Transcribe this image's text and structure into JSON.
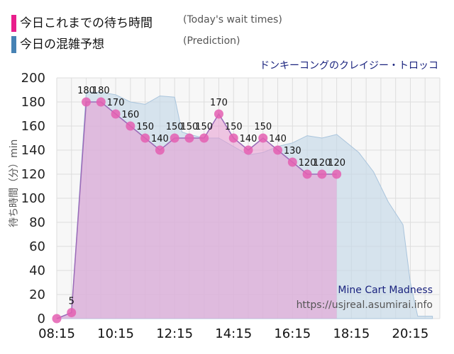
{
  "legend": {
    "actual_label": "今日これまでの待ち時間",
    "actual_sub": "(Today's wait times)",
    "actual_color": "#e91e8c",
    "pred_label": "今日の混雑予想",
    "pred_sub": "(Prediction)",
    "pred_color": "#4682b4"
  },
  "ride_name": "ドンキーコングのクレイジー・トロッコ",
  "watermark": {
    "title": "Mine Cart Madness",
    "url": "https://usjreal.asumirai.info"
  },
  "chart_data": {
    "type": "area",
    "ylabel": "待ち時間（分）min",
    "ylim": [
      0,
      200
    ],
    "yticks": [
      0,
      20,
      40,
      60,
      80,
      100,
      120,
      140,
      160,
      180,
      200
    ],
    "xlim": [
      "08:15",
      "21:15"
    ],
    "xticks": [
      "08:15",
      "10:15",
      "12:15",
      "14:15",
      "16:15",
      "18:15",
      "20:15"
    ],
    "grid": true,
    "series": [
      {
        "name": "今日これまでの待ち時間",
        "x": [
          "08:15",
          "08:45",
          "09:15",
          "09:45",
          "10:15",
          "10:45",
          "11:15",
          "11:45",
          "12:15",
          "12:45",
          "13:15",
          "13:45",
          "14:15",
          "14:45",
          "15:15",
          "15:45",
          "16:15",
          "16:45",
          "17:15",
          "17:45"
        ],
        "values": [
          0,
          5,
          180,
          180,
          170,
          160,
          150,
          140,
          150,
          150,
          150,
          170,
          150,
          140,
          150,
          140,
          130,
          120,
          120,
          120
        ],
        "labels": [
          "",
          "5",
          "180",
          "180",
          "170",
          "160",
          "150",
          "140",
          "150",
          "150",
          "150",
          "170",
          "150",
          "140",
          "150",
          "140",
          "130",
          "120",
          "120",
          "120"
        ]
      },
      {
        "name": "今日の混雑予想",
        "x": [
          "08:15",
          "08:45",
          "09:15",
          "09:45",
          "10:15",
          "10:45",
          "11:15",
          "11:45",
          "12:15",
          "12:30",
          "12:45",
          "13:15",
          "13:45",
          "14:15",
          "14:45",
          "15:15",
          "15:45",
          "16:15",
          "16:45",
          "17:15",
          "17:45",
          "18:00",
          "18:30",
          "19:00",
          "19:30",
          "20:00",
          "20:15",
          "20:30",
          "21:00"
        ],
        "values": [
          0,
          5,
          188,
          188,
          186,
          180,
          178,
          185,
          184,
          155,
          153,
          150,
          150,
          143,
          136,
          138,
          143,
          146,
          152,
          150,
          153,
          148,
          138,
          122,
          97,
          78,
          30,
          2,
          2
        ]
      }
    ]
  }
}
